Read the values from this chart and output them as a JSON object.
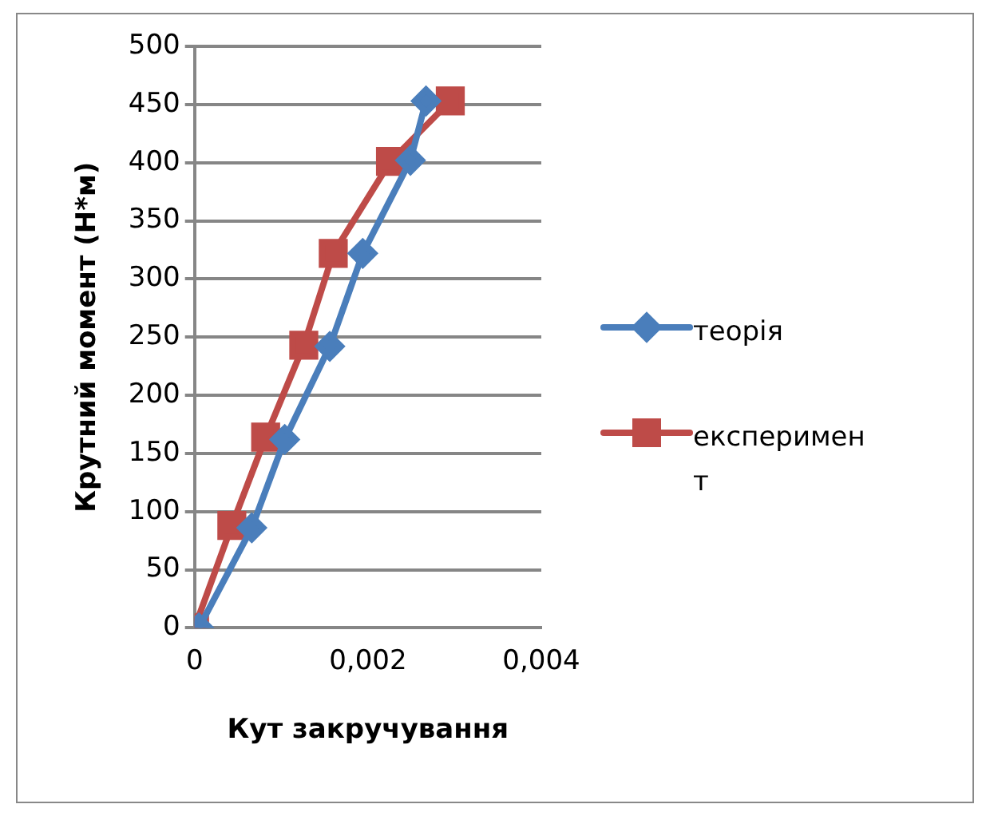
{
  "chart_data": {
    "type": "line",
    "xlabel": "Кут закручування",
    "ylabel": "Крутний момент (Н*м)",
    "xlim": [
      0,
      0.004
    ],
    "xticks": [
      0,
      {
        "value": 0.002,
        "label": "0,002"
      },
      {
        "value": 0.004,
        "label": "0,004"
      }
    ],
    "ylim": [
      0,
      500
    ],
    "yticks": [
      0,
      50,
      100,
      150,
      200,
      250,
      300,
      350,
      400,
      450,
      500
    ],
    "grid": "y",
    "legend": "right",
    "series": [
      {
        "name": "теорія",
        "color": "#4a7ebb",
        "marker": "diamond",
        "x": [
          5e-05,
          0.00066,
          0.00104,
          0.00156,
          0.00194,
          0.00249,
          0.00267
        ],
        "values": [
          0,
          86,
          162,
          242,
          322,
          402,
          453
        ]
      },
      {
        "name": "експеримент",
        "color": "#be4b48",
        "marker": "square",
        "x": [
          0,
          0.00043,
          0.00082,
          0.00126,
          0.0016,
          0.00226,
          0.00295
        ],
        "values": [
          0,
          88,
          164,
          243,
          322,
          401,
          453
        ]
      }
    ]
  }
}
